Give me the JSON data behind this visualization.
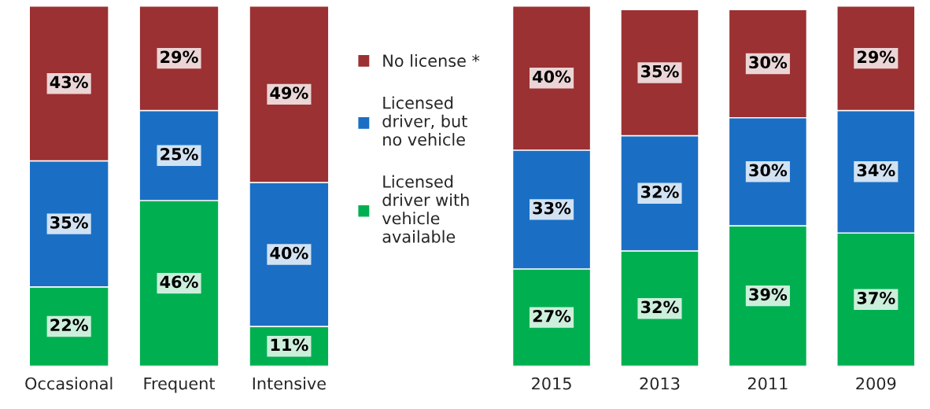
{
  "chart_data": [
    {
      "type": "bar",
      "stacked": true,
      "data_labels": false,
      "legend": "right",
      "grid": false,
      "categories": [
        "Occasional",
        "Frequent",
        "Intensive"
      ],
      "series": [
        {
          "name": "Licensed driver with vehicle available",
          "color": "#00b050",
          "values": [
            22,
            46,
            11
          ],
          "value_labels": [
            "22%",
            "46%",
            "11%"
          ]
        },
        {
          "name": "Licensed driver, but no vehicle",
          "color": "#1a6fc4",
          "values": [
            35,
            25,
            40
          ],
          "value_labels": [
            "35%",
            "25%",
            "40%"
          ]
        },
        {
          "name": "No license *",
          "color": "#9b3132",
          "values": [
            43,
            29,
            49
          ],
          "value_labels": [
            "43%",
            "29%",
            "49%"
          ]
        }
      ]
    },
    {
      "type": "bar",
      "stacked": true,
      "data_labels": false,
      "legend": false,
      "grid": false,
      "categories": [
        "2015",
        "2013",
        "2011",
        "2009"
      ],
      "series": [
        {
          "color": "#00b050",
          "values": [
            27,
            32,
            39,
            37
          ],
          "value_labels": [
            "27%",
            "32%",
            "39%",
            "37%"
          ]
        },
        {
          "color": "#1a6fc4",
          "values": [
            33,
            32,
            30,
            34
          ],
          "value_labels": [
            "33%",
            "32%",
            "30%",
            "34%"
          ]
        },
        {
          "color": "#9b3132",
          "values": [
            40,
            35,
            30,
            29
          ],
          "value_labels": [
            "40%",
            "35%",
            "30%",
            "29%"
          ]
        }
      ]
    }
  ]
}
